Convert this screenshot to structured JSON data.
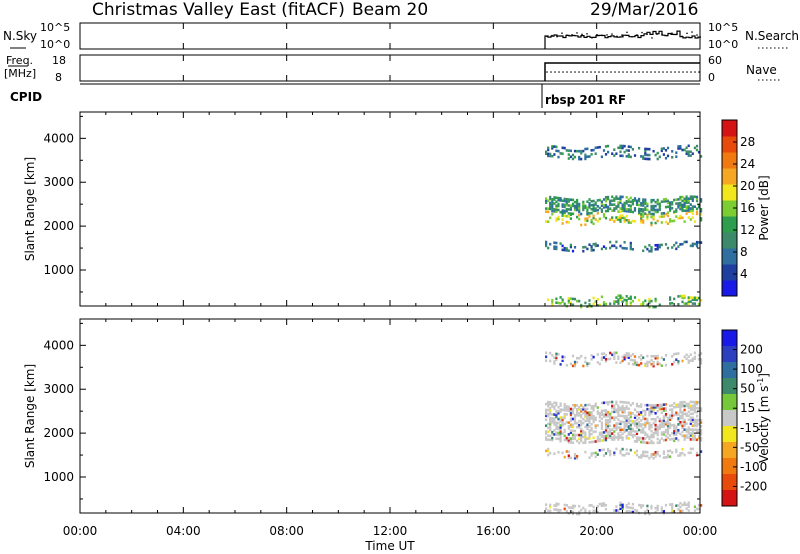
{
  "header": {
    "station": "Christmas Valley East (fitACF)",
    "beam": "Beam 20",
    "date": "29/Mar/2016"
  },
  "nsky_panel": {
    "left_label": "N.Sky",
    "right_label": "N.Search",
    "ticks_left": [
      "10^5",
      "10^0"
    ],
    "ticks_right": [
      "10^5",
      "10^0"
    ]
  },
  "freq_panel": {
    "left_label_1": "Freq.",
    "left_label_2": "[MHz]",
    "right_label": "Nave",
    "ticks_left": [
      "18",
      "8"
    ],
    "ticks_right": [
      "60",
      "0"
    ]
  },
  "cpid": {
    "label": "CPID",
    "program": "rbsp 201 RF",
    "start_hour": 18.0
  },
  "time_axis": {
    "label": "Time UT",
    "ticks": [
      "00:00",
      "04:00",
      "08:00",
      "12:00",
      "16:00",
      "20:00",
      "00:00"
    ]
  },
  "power_colorbar": {
    "label": "Power [dB]",
    "ticks": [
      "4",
      "8",
      "12",
      "16",
      "20",
      "24",
      "28"
    ],
    "colors": [
      "#1a1ae6",
      "#1f3fa0",
      "#2f6f9f",
      "#3c8a6b",
      "#2e9e4e",
      "#7ccd32",
      "#f2e61e",
      "#f5a623",
      "#f07a10",
      "#e84a0c",
      "#d41414"
    ]
  },
  "velocity_colorbar": {
    "label": "Velocity [m s^-1]",
    "ticks": [
      "200",
      "100",
      "50",
      "15",
      "-15",
      "-50",
      "-100",
      "-200"
    ],
    "colors": [
      "#1a1ae6",
      "#2b3fbf",
      "#2f6f9f",
      "#3c8a6b",
      "#74c83a",
      "#c8c8c8",
      "#f2e61e",
      "#f5a623",
      "#f07a10",
      "#e84a0c",
      "#d41414"
    ]
  },
  "chart_data": [
    {
      "type": "heatmap",
      "title": "Power",
      "xlabel": "Time UT",
      "ylabel": "Slant Range [km]",
      "xlim": [
        0,
        24
      ],
      "ylim": [
        180,
        4600
      ],
      "yticks": [
        1000,
        2000,
        3000,
        4000
      ],
      "data_start_hour": 18.0,
      "colorbar": {
        "label": "Power [dB]",
        "range": [
          0,
          32
        ]
      },
      "echo_bands": [
        {
          "range_km": [
            2050,
            2300
          ],
          "dominant_power_db": 18
        },
        {
          "range_km": [
            2300,
            2650
          ],
          "dominant_power_db": 11
        },
        {
          "range_km": [
            3550,
            3800
          ],
          "dominant_power_db": 8
        },
        {
          "range_km": [
            1450,
            1600
          ],
          "dominant_power_db": 7
        },
        {
          "range_km": [
            180,
            400
          ],
          "dominant_power_db": 14
        }
      ]
    },
    {
      "type": "heatmap",
      "title": "Velocity",
      "xlabel": "Time UT",
      "ylabel": "Slant Range [km]",
      "xlim": [
        0,
        24
      ],
      "ylim": [
        180,
        4600
      ],
      "yticks": [
        1000,
        2000,
        3000,
        4000
      ],
      "data_start_hour": 18.0,
      "colorbar": {
        "label": "Velocity [m s^-1]",
        "range": [
          -250,
          250
        ]
      },
      "echo_bands": [
        {
          "range_km": [
            1800,
            2700
          ],
          "dominant_velocity": 0
        },
        {
          "range_km": [
            3550,
            3800
          ],
          "dominant_velocity": 0
        },
        {
          "range_km": [
            1450,
            1600
          ],
          "dominant_velocity": 0
        },
        {
          "range_km": [
            180,
            400
          ],
          "dominant_velocity": 30
        }
      ]
    }
  ]
}
